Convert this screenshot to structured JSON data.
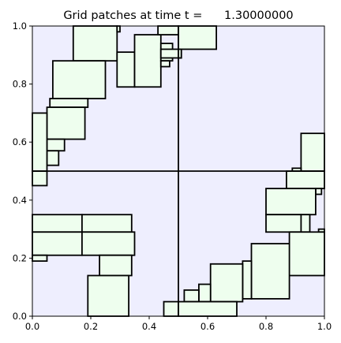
{
  "chart_data": {
    "type": "rectangles",
    "title": "Grid patches at time t =      1.30000000",
    "xlabel": "",
    "ylabel": "",
    "xlim": [
      0.0,
      1.0
    ],
    "ylim": [
      0.0,
      1.0
    ],
    "x_ticks": [
      "0.0",
      "0.2",
      "0.4",
      "0.6",
      "0.8",
      "1.0"
    ],
    "y_ticks": [
      "0.0",
      "0.2",
      "0.4",
      "0.6",
      "0.8",
      "1.0"
    ],
    "grid": false,
    "colors": {
      "background": "#eeeefe",
      "patch_fill": "#eefeee",
      "patch_edge": "#000000"
    },
    "level1_lines": {
      "vertical_x": 0.5,
      "horizontal_y": 0.5
    },
    "patches": [
      {
        "x0": 0.14,
        "y0": 0.88,
        "x1": 0.29,
        "y1": 1.0
      },
      {
        "x0": 0.29,
        "y0": 0.98,
        "x1": 0.3,
        "y1": 1.0
      },
      {
        "x0": 0.07,
        "y0": 0.75,
        "x1": 0.25,
        "y1": 0.88
      },
      {
        "x0": 0.06,
        "y0": 0.72,
        "x1": 0.19,
        "y1": 0.75
      },
      {
        "x0": 0.05,
        "y0": 0.61,
        "x1": 0.18,
        "y1": 0.72
      },
      {
        "x0": 0.05,
        "y0": 0.57,
        "x1": 0.11,
        "y1": 0.61
      },
      {
        "x0": 0.05,
        "y0": 0.52,
        "x1": 0.09,
        "y1": 0.57
      },
      {
        "x0": 0.0,
        "y0": 0.5,
        "x1": 0.05,
        "y1": 0.7
      },
      {
        "x0": 0.0,
        "y0": 0.45,
        "x1": 0.05,
        "y1": 0.5
      },
      {
        "x0": 0.29,
        "y0": 0.79,
        "x1": 0.35,
        "y1": 0.91
      },
      {
        "x0": 0.35,
        "y0": 0.79,
        "x1": 0.44,
        "y1": 0.97
      },
      {
        "x0": 0.44,
        "y0": 0.88,
        "x1": 0.48,
        "y1": 0.94
      },
      {
        "x0": 0.44,
        "y0": 0.86,
        "x1": 0.47,
        "y1": 0.88
      },
      {
        "x0": 0.44,
        "y0": 0.89,
        "x1": 0.51,
        "y1": 0.92
      },
      {
        "x0": 0.43,
        "y0": 0.97,
        "x1": 0.5,
        "y1": 1.0
      },
      {
        "x0": 0.5,
        "y0": 0.92,
        "x1": 0.63,
        "y1": 1.0
      },
      {
        "x0": 0.5,
        "y0": 0.89,
        "x1": 0.51,
        "y1": 0.92
      },
      {
        "x0": 0.92,
        "y0": 0.5,
        "x1": 1.0,
        "y1": 0.63
      },
      {
        "x0": 0.89,
        "y0": 0.5,
        "x1": 0.92,
        "y1": 0.51
      },
      {
        "x0": 0.87,
        "y0": 0.44,
        "x1": 1.0,
        "y1": 0.5
      },
      {
        "x0": 0.97,
        "y0": 0.42,
        "x1": 0.99,
        "y1": 0.44
      },
      {
        "x0": 0.8,
        "y0": 0.35,
        "x1": 0.97,
        "y1": 0.44
      },
      {
        "x0": 0.8,
        "y0": 0.29,
        "x1": 0.92,
        "y1": 0.35
      },
      {
        "x0": 0.92,
        "y0": 0.29,
        "x1": 0.95,
        "y1": 0.35
      },
      {
        "x0": 0.98,
        "y0": 0.29,
        "x1": 1.0,
        "y1": 0.3
      },
      {
        "x0": 0.88,
        "y0": 0.14,
        "x1": 1.0,
        "y1": 0.29
      },
      {
        "x0": 0.75,
        "y0": 0.06,
        "x1": 0.88,
        "y1": 0.25
      },
      {
        "x0": 0.72,
        "y0": 0.06,
        "x1": 0.75,
        "y1": 0.19
      },
      {
        "x0": 0.61,
        "y0": 0.05,
        "x1": 0.72,
        "y1": 0.18
      },
      {
        "x0": 0.57,
        "y0": 0.05,
        "x1": 0.61,
        "y1": 0.11
      },
      {
        "x0": 0.52,
        "y0": 0.05,
        "x1": 0.57,
        "y1": 0.09
      },
      {
        "x0": 0.5,
        "y0": 0.0,
        "x1": 0.7,
        "y1": 0.05
      },
      {
        "x0": 0.45,
        "y0": 0.0,
        "x1": 0.5,
        "y1": 0.05
      },
      {
        "x0": 0.0,
        "y0": 0.29,
        "x1": 0.17,
        "y1": 0.35
      },
      {
        "x0": 0.17,
        "y0": 0.29,
        "x1": 0.34,
        "y1": 0.35
      },
      {
        "x0": 0.0,
        "y0": 0.21,
        "x1": 0.17,
        "y1": 0.29
      },
      {
        "x0": 0.17,
        "y0": 0.21,
        "x1": 0.35,
        "y1": 0.29
      },
      {
        "x0": 0.0,
        "y0": 0.19,
        "x1": 0.05,
        "y1": 0.21
      },
      {
        "x0": 0.23,
        "y0": 0.14,
        "x1": 0.34,
        "y1": 0.21
      },
      {
        "x0": 0.19,
        "y0": 0.0,
        "x1": 0.33,
        "y1": 0.14
      }
    ]
  }
}
